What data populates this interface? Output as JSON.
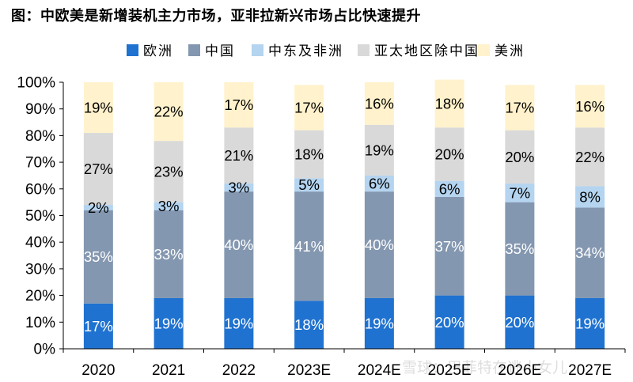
{
  "chart_data": {
    "type": "bar",
    "stacked": true,
    "percent_stacked": true,
    "title": "图：中欧美是新增装机主力市场，亚非拉新兴市场占比快速提升",
    "xlabel": "",
    "ylabel": "",
    "ylim": [
      0,
      100
    ],
    "yticks": [
      "0%",
      "10%",
      "20%",
      "30%",
      "40%",
      "50%",
      "60%",
      "70%",
      "80%",
      "90%",
      "100%"
    ],
    "categories": [
      "2020",
      "2021",
      "2022",
      "2023E",
      "2024E",
      "2025E",
      "2026E",
      "2027E"
    ],
    "legend_position": "top",
    "grid": false,
    "series": [
      {
        "name": "欧洲",
        "color": "#1f72d0",
        "label_color": "#ffffff",
        "values": [
          17,
          19,
          19,
          18,
          19,
          20,
          20,
          19
        ]
      },
      {
        "name": "中国",
        "color": "#8497b0",
        "label_color": "#ffffff",
        "values": [
          35,
          33,
          40,
          41,
          40,
          37,
          35,
          34
        ]
      },
      {
        "name": "中东及非洲",
        "color": "#b4d4f0",
        "label_color": "#000000",
        "values": [
          2,
          3,
          3,
          5,
          6,
          6,
          7,
          8
        ]
      },
      {
        "name": "亚太地区除中国",
        "color": "#d9d9d9",
        "label_color": "#000000",
        "values": [
          27,
          23,
          21,
          18,
          19,
          20,
          20,
          22
        ]
      },
      {
        "name": "美洲",
        "color": "#fff2cc",
        "label_color": "#000000",
        "values": [
          19,
          22,
          17,
          17,
          16,
          18,
          17,
          16
        ]
      }
    ],
    "data_labels": [
      [
        "17%",
        "19%",
        "19%",
        "18%",
        "19%",
        "20%",
        "20%",
        "19%"
      ],
      [
        "35%",
        "33%",
        "40%",
        "41%",
        "40%",
        "37%",
        "35%",
        "34%"
      ],
      [
        "2%",
        "3%",
        "3%",
        "5%",
        "6%",
        "6%",
        "7%",
        "8%"
      ],
      [
        "27%",
        "23%",
        "21%",
        "18%",
        "19%",
        "20%",
        "20%",
        "22%"
      ],
      [
        "19%",
        "22%",
        "17%",
        "17%",
        "16%",
        "18%",
        "17%",
        "16%"
      ]
    ]
  },
  "watermark": "雪球：巴菲特在逃小女儿"
}
